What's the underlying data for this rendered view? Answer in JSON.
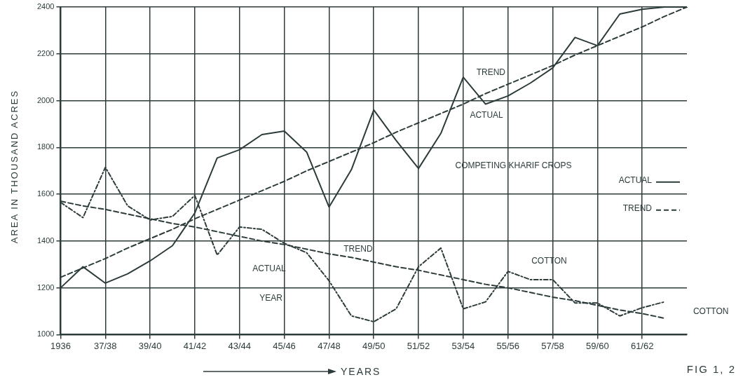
{
  "chart_data": {
    "type": "line",
    "xlabel": "YEARS",
    "ylabel": "AREA IN THOUSAND ACRES",
    "categories": [
      "1936",
      null,
      "37/38",
      null,
      "39/40",
      null,
      "41/42",
      null,
      "43/44",
      null,
      "45/46",
      null,
      "47/48",
      null,
      "49/50",
      null,
      "51/52",
      null,
      "53/54",
      null,
      "55/56",
      null,
      "57/58",
      null,
      "59/60",
      null,
      "61/62",
      null,
      null
    ],
    "ylim": [
      1000,
      2400
    ],
    "yticks": [
      1000,
      1200,
      1400,
      1600,
      1800,
      2000,
      2200,
      2400
    ],
    "grid": true,
    "legend": "right",
    "marker": "none",
    "series": [
      {
        "name": "ACTUAL",
        "color": "#2d3b3b",
        "line_style": "solid",
        "values": [
          1200,
          1290,
          1220,
          1260,
          1315,
          1380,
          1520,
          1755,
          1790,
          1855,
          1870,
          1780,
          1545,
          1705,
          1960,
          1830,
          1710,
          1860,
          2100,
          1985,
          2020,
          2075,
          2140,
          2270,
          2235,
          2370,
          2390,
          2400,
          2400
        ]
      },
      {
        "name": "TREND",
        "color": "#2d3b3b",
        "line_style": "dashed",
        "values": [
          1245,
          1285,
          1325,
          1370,
          1410,
          1450,
          1495,
          1535,
          1575,
          1615,
          1655,
          1700,
          1740,
          1780,
          1820,
          1865,
          1905,
          1945,
          1985,
          2030,
          2070,
          2110,
          2150,
          2195,
          2235,
          2275,
          2315,
          2360,
          2400
        ]
      },
      {
        "color": "#2d3b3b",
        "line_style": "dotted",
        "values": [
          1565,
          1500,
          1715,
          1550,
          1490,
          1505,
          1595,
          1340,
          1460,
          1450,
          1390,
          1350,
          1230,
          1080,
          1055,
          1110,
          1290,
          1370,
          1110,
          1140,
          1270,
          1235,
          1235,
          1135,
          1135,
          1080,
          1115,
          1140,
          null
        ]
      },
      {
        "color": "#2d3b3b",
        "line_style": "dashed",
        "values": [
          1570,
          1550,
          1535,
          1515,
          1495,
          1475,
          1460,
          1440,
          1420,
          1400,
          1385,
          1365,
          1345,
          1330,
          1310,
          1290,
          1275,
          1255,
          1235,
          1215,
          1200,
          1180,
          1160,
          1145,
          1125,
          1105,
          1090,
          1070,
          null
        ]
      }
    ],
    "annotations": [
      "TREND",
      "ACTUAL",
      "COMPETING KHARIF CROPS",
      "COTTON",
      "ACTUAL",
      "TREND",
      "YEAR",
      "COTTON",
      "FIG 1, 2"
    ]
  }
}
